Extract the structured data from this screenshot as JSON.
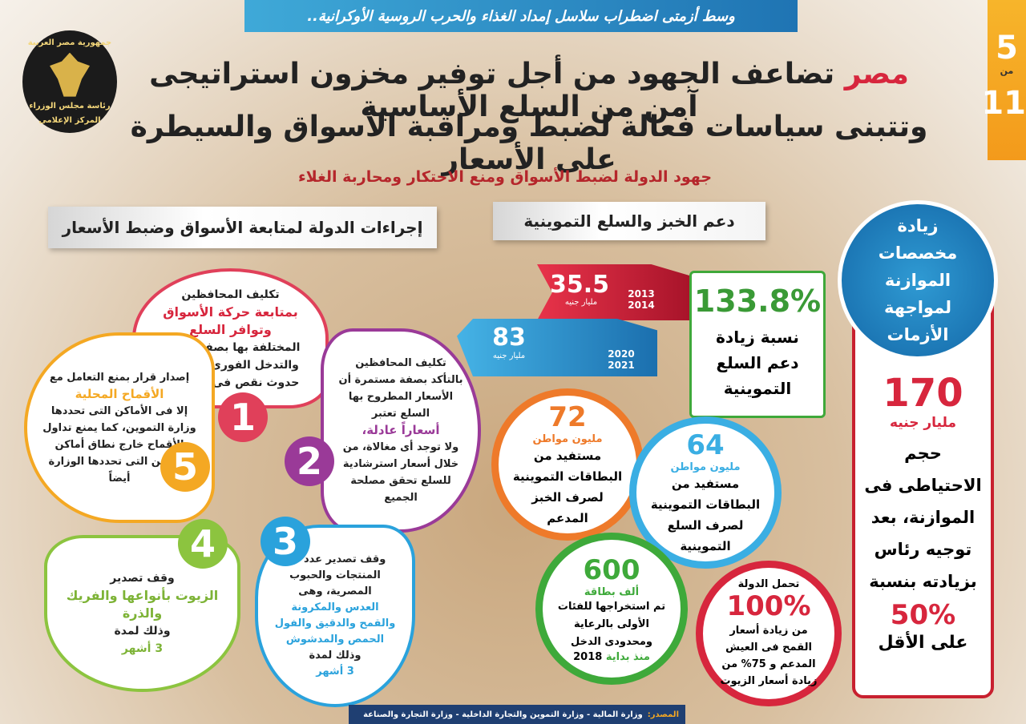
{
  "header": {
    "subtitle": "وسط أزمتى اضطراب سلاسل إمداد الغذاء والحرب الروسية الأوكرانية..",
    "title_highlight": "مصر",
    "title_line1": "تضاعف الجهود من أجل توفير مخزون استراتيجى آمن من السلع الأساسية",
    "title_line2": "وتتبنى سياسات فعالة لضبط ومراقبة الأسواق والسيطرة على الأسعار"
  },
  "page_counter": {
    "current": "5",
    "of": "من",
    "total": "11"
  },
  "logo": {
    "line1": "جمهورية مصر العربية",
    "line2": "رئاسة مجلس الوزراء",
    "line3": "المركز الإعلامى"
  },
  "section_title": "جهود الدولة لضبط الأسواق ومنع الاحتكار ومحاربة الغلاء",
  "headings": {
    "left": "إجراءات الدولة لمتابعة الأسواق وضبط الأسعار",
    "middle": "دعم الخبز والسلع التموينية"
  },
  "budget": {
    "title": "زيادة مخصصات الموازنة لمواجهة الأزمات",
    "value": "170",
    "unit": "مليار جنيه",
    "text": "حجم الاحتياطى فى الموازنة، بعد توجيه رئاس بزيادته بنسبة",
    "percent": "50%",
    "end": "على الأقل"
  },
  "subsidy": {
    "bars": [
      {
        "value": "35.5",
        "unit": "مليار جنيه",
        "year_from": "2013",
        "year_to": "2014"
      },
      {
        "value": "83",
        "unit": "مليار جنيه",
        "year_from": "2020",
        "year_to": "2021"
      }
    ],
    "growth_value": "133.8%",
    "growth_text": "نسبة زيادة دعم السلع التموينية"
  },
  "circles": [
    {
      "value": "72",
      "unit": "مليون مواطن",
      "text": "مستفيد من البطاقات التموينية لصرف الخبز المدعم"
    },
    {
      "value": "64",
      "unit": "مليون مواطن",
      "text": "مستفيد من البطاقات التموينية لصرف السلع التموينية"
    },
    {
      "value": "600",
      "unit": "ألف بطاقة",
      "text": "تم استخراجها للفئات الأولى بالرعاية ومحدودى الدخل",
      "highlight": "منذ بداية",
      "year": "2018"
    },
    {
      "top": "تحمل الدولة",
      "value": "100%",
      "text": "من زيادة أسعار القمح فى العيش المدعم و 75% من زيادة أسعار الزيوت"
    }
  ],
  "petals": [
    {
      "number": "1",
      "before": "تكليف المحافظين",
      "highlight": "بمتابعة حركة الأسواق وتوافر السلع",
      "after": "المختلفة بها بصفة يومية، والتدخل الفورى لمواجهة حدوث نقص فى أى سلعة"
    },
    {
      "number": "2",
      "before": "تكليف المحافظين بالتأكد بصفة مستمرة أن الأسعار المطروح بها السلع تعتبر",
      "highlight": "أسعاراً عادلة،",
      "after": "ولا توجد أى مغالاة، من خلال أسعار استرشادية للسلع تحقق مصلحة الجميع"
    },
    {
      "number": "3",
      "before": "وقف تصدير عدد من المنتجات والحبوب المصرية، وهى",
      "highlight": "العدس والمكرونة والقمح والدقيق والفول الحمص والمدشوش",
      "after": "وذلك لمدة",
      "duration": "3 أشهر"
    },
    {
      "number": "4",
      "before": "وقف تصدير",
      "highlight": "الزيوت بأنواعها والفريك والذرة",
      "after": "وذلك لمدة",
      "duration": "3 أشهر"
    },
    {
      "number": "5",
      "before": "إصدار قرار بمنع التعامل مع",
      "highlight": "الأقماح المحلية",
      "after": "إلا فى الأماكن التى تحددها وزارة التموين، كما يمنع تداول الأقماح خارج نطاق أماكن التخزين التى تحددها الوزارة أيضاً"
    }
  ],
  "footer": {
    "label": "المصدر:",
    "text": "وزارة المالية - وزارة التموين والتجارة الداخلية - وزارة التجارة والصناعة"
  }
}
